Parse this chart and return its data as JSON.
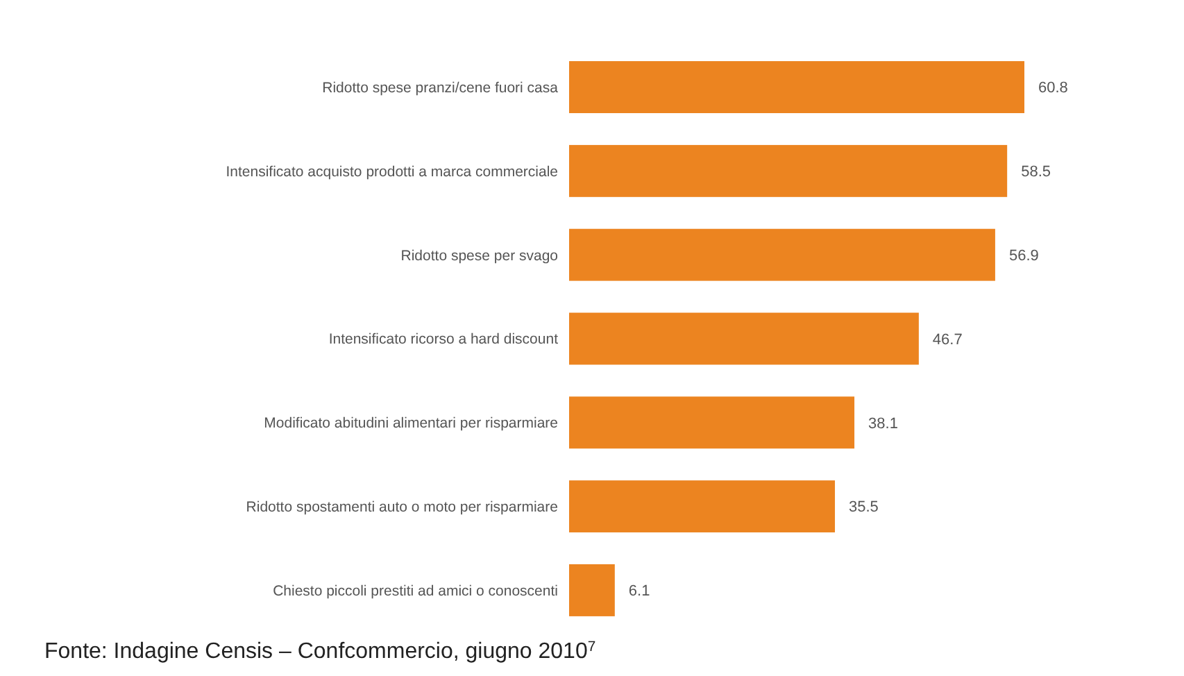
{
  "chart_data": {
    "type": "bar",
    "orientation": "horizontal",
    "categories": [
      "Ridotto spese pranzi/cene fuori casa",
      "Intensificato acquisto prodotti a marca commerciale",
      "Ridotto spese per svago",
      "Intensificato ricorso a hard discount",
      "Modificato abitudini alimentari per risparmiare",
      "Ridotto spostamenti auto o moto per risparmiare",
      "Chiesto piccoli prestiti ad amici o conoscenti"
    ],
    "values": [
      60.8,
      58.5,
      56.9,
      46.7,
      38.1,
      35.5,
      6.1
    ],
    "color": "#ec8420",
    "data_labels": true,
    "annotations": [
      "Fonte: Indagine Censis – Confcommercio, giugno 2010$^{7}$"
    ]
  }
}
